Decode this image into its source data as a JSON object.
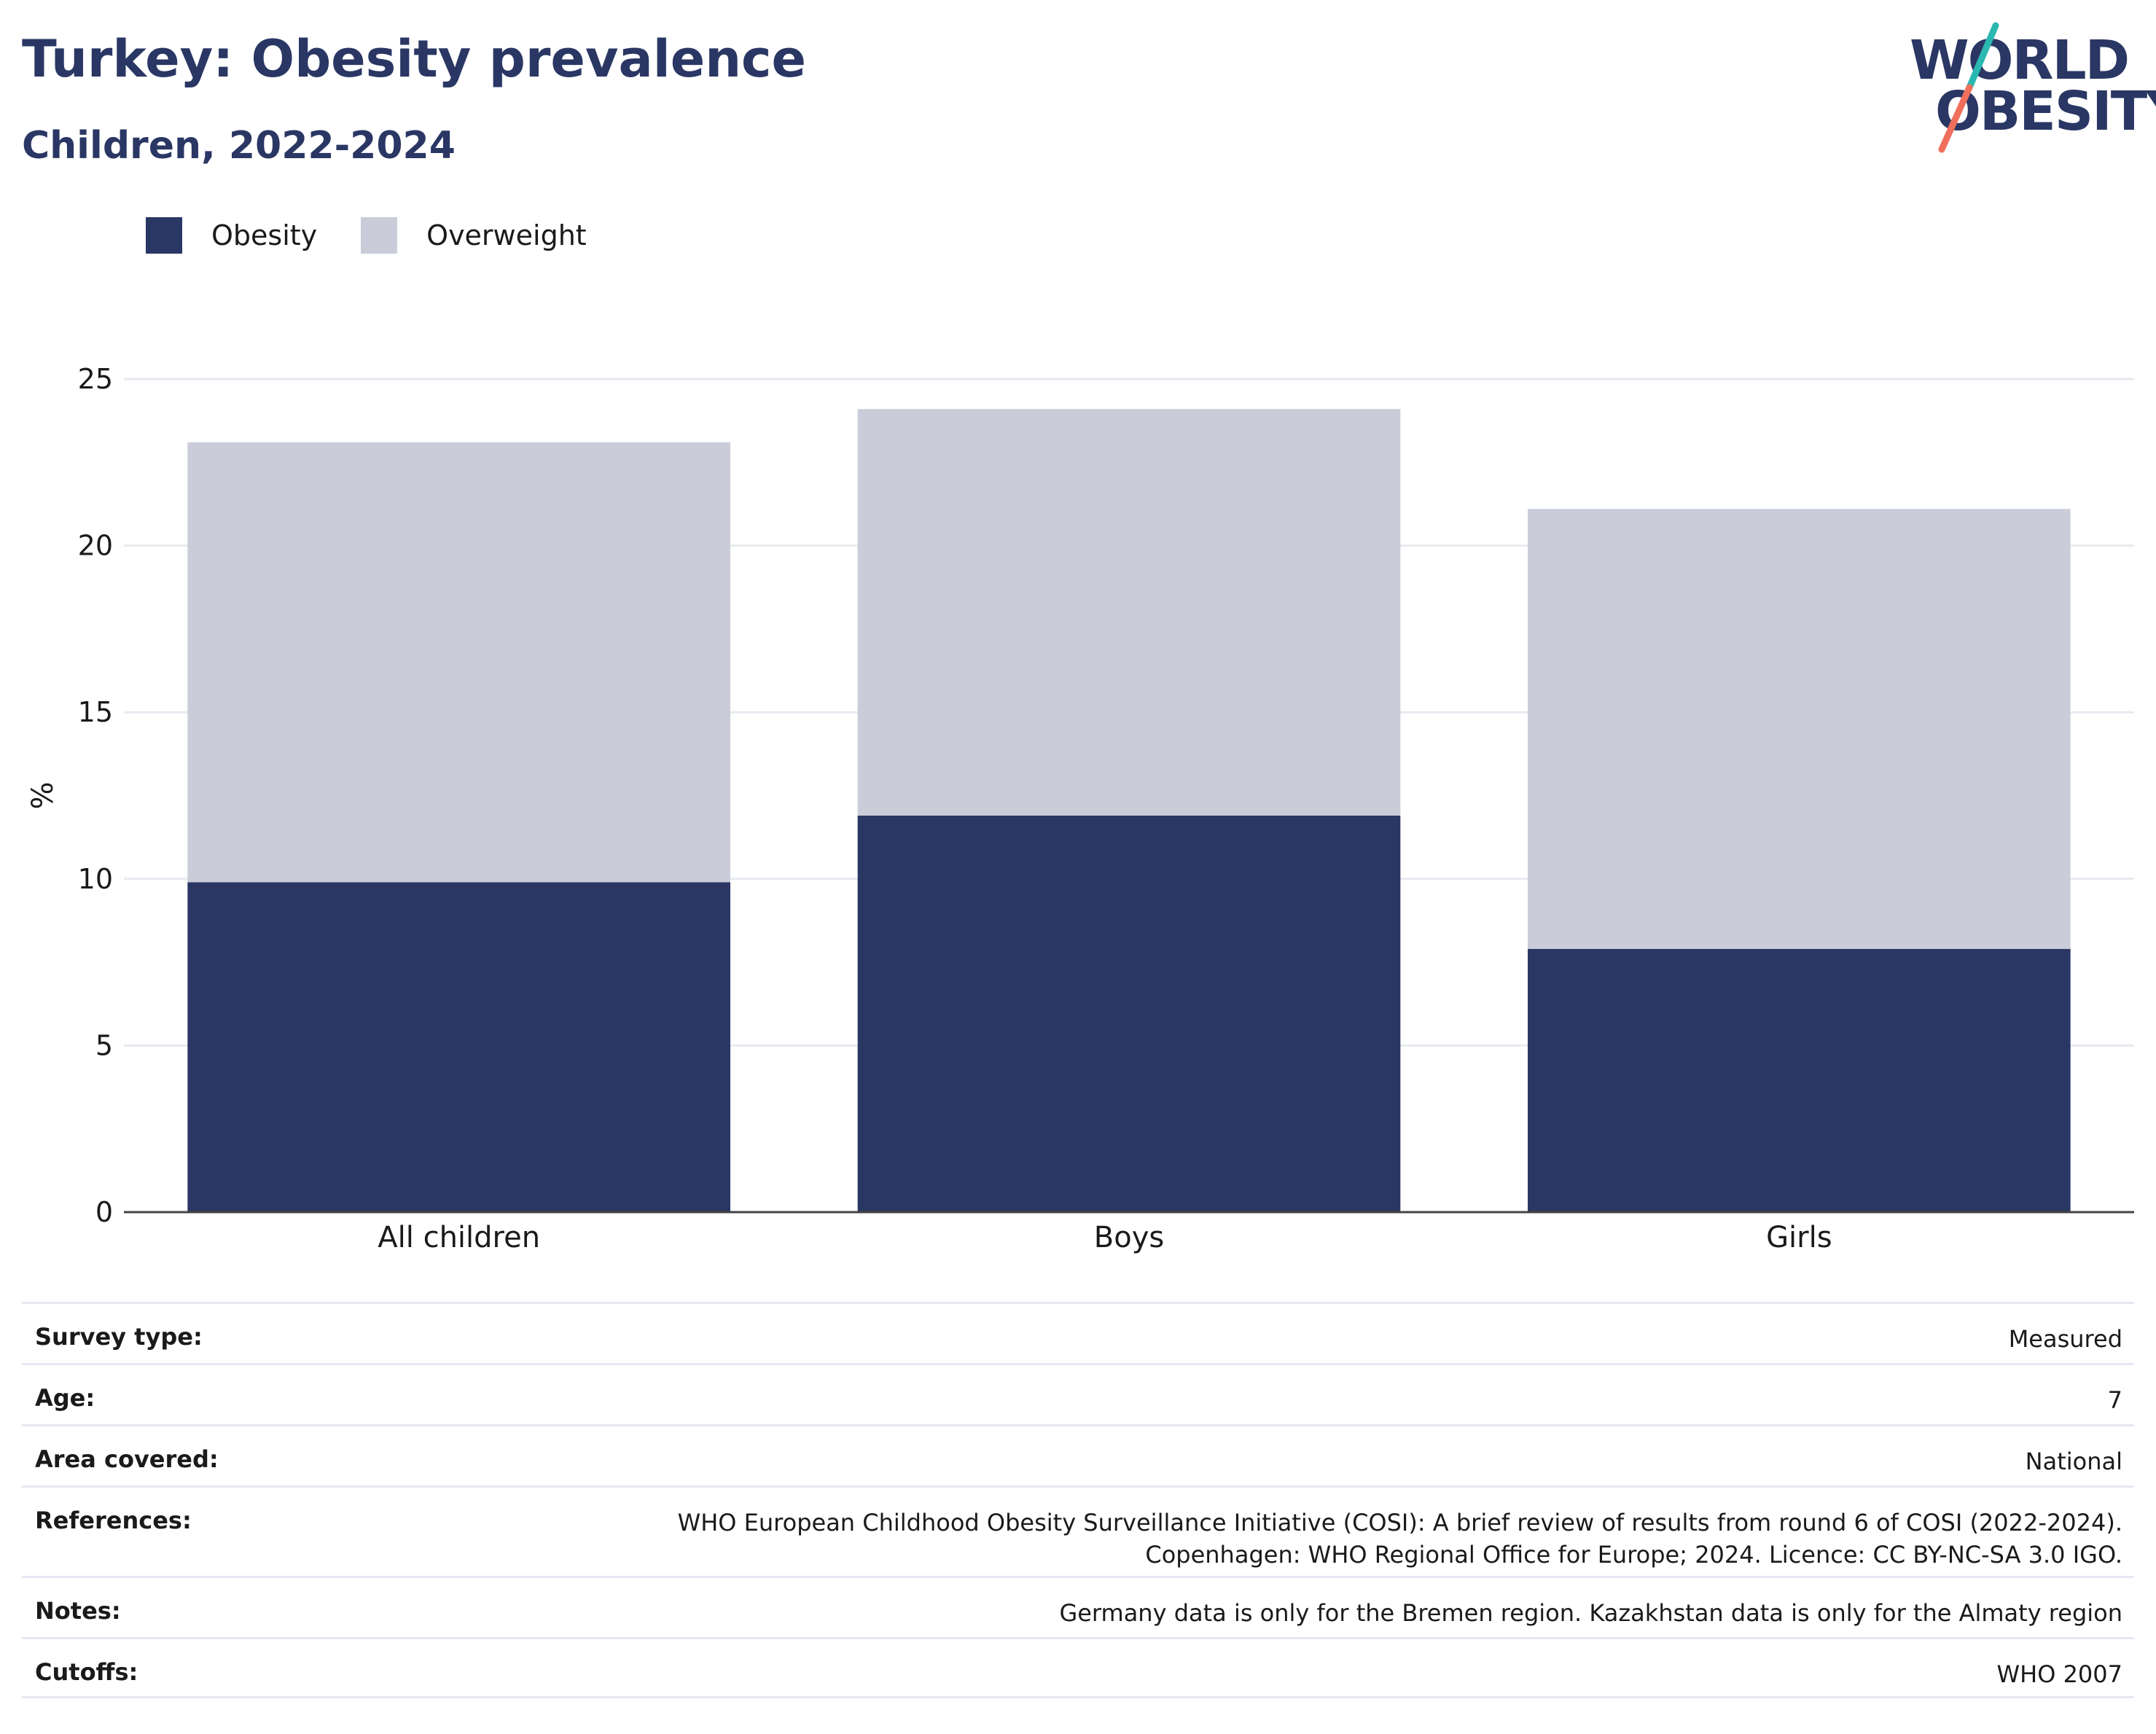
{
  "header": {
    "title": "Turkey: Obesity prevalence",
    "subtitle": "Children, 2022-2024"
  },
  "logo": {
    "line1": "WORLD",
    "line2": "OBESITY",
    "accent_teal": "#2bb8b0",
    "accent_coral": "#ef6f5c"
  },
  "chart_data": {
    "type": "bar",
    "stacked": true,
    "title": "Turkey: Obesity prevalence",
    "subtitle": "Children, 2022-2024",
    "categories": [
      "All children",
      "Boys",
      "Girls"
    ],
    "series": [
      {
        "name": "Obesity",
        "color": "#2a3764",
        "values": [
          9.9,
          11.9,
          7.9
        ]
      },
      {
        "name": "Overweight",
        "color": "#cacdd9",
        "values": [
          13.2,
          12.2,
          13.2
        ]
      }
    ],
    "xlabel": "",
    "ylabel": "%",
    "ylim": [
      0,
      25
    ],
    "yticks": [
      0,
      5,
      10,
      15,
      20,
      25
    ],
    "grid": true,
    "legend": "top-left"
  },
  "info": [
    {
      "key": "Survey type:",
      "value": [
        "Measured"
      ]
    },
    {
      "key": "Age:",
      "value": [
        "7"
      ]
    },
    {
      "key": "Area covered:",
      "value": [
        "National"
      ]
    },
    {
      "key": "References:",
      "value": [
        "WHO European Childhood Obesity Surveillance Initiative (COSI): A brief review of results from round 6 of COSI (2022-2024).",
        "Copenhagen: WHO Regional Office for Europe; 2024. Licence: CC BY-NC-SA 3.0 IGO."
      ]
    },
    {
      "key": "Notes:",
      "value": [
        "Germany data is only for the Bremen region. Kazakhstan data is only for the Almaty region"
      ]
    },
    {
      "key": "Cutoffs:",
      "value": [
        "WHO 2007"
      ]
    }
  ]
}
